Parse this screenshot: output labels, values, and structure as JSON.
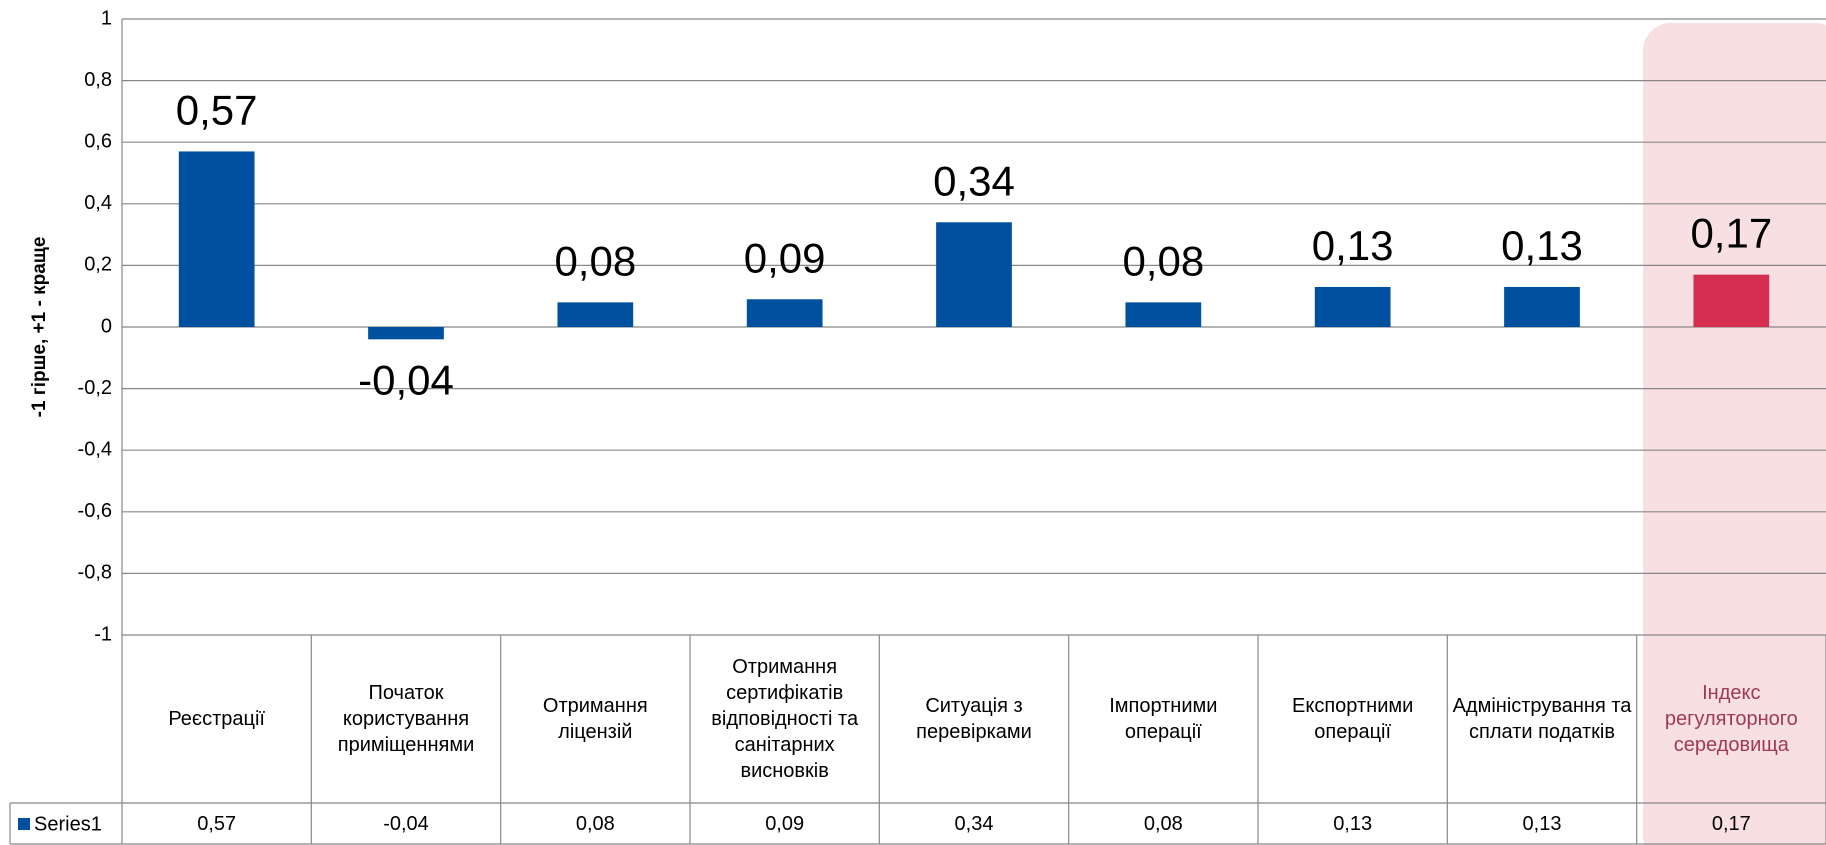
{
  "chart_data": {
    "type": "bar",
    "y_label": "-1 гірше, +1 - краще",
    "categories": [
      "Реєстрації",
      "Початок користування приміщеннями",
      "Отримання ліцензій",
      "Отримання сертифікатів відповідності та санітарних висновків",
      "Ситуація з перевірками",
      "Імпортними операції",
      "Експортними операції",
      "Адміністрування та сплати податків",
      "Індекс регуляторного середовища"
    ],
    "series": [
      {
        "name": "Series1",
        "color": "#0050a0",
        "colors": [
          "#0050a0",
          "#0050a0",
          "#0050a0",
          "#0050a0",
          "#0050a0",
          "#0050a0",
          "#0050a0",
          "#0050a0",
          "#d62e50"
        ],
        "values": [
          0.57,
          -0.04,
          0.08,
          0.09,
          0.34,
          0.08,
          0.13,
          0.13,
          0.17
        ],
        "value_labels": [
          "0,57",
          "-0,04",
          "0,08",
          "0,09",
          "0,34",
          "0,08",
          "0,13",
          "0,13",
          "0,17"
        ]
      }
    ],
    "ylim": [
      -1,
      1
    ],
    "yticks": [
      1,
      {
        "value": 0.8,
        "label": "0,8"
      },
      {
        "value": 0.6,
        "label": "0,6"
      },
      {
        "value": 0.4,
        "label": "0,4"
      },
      {
        "value": 0.2,
        "label": "0,2"
      },
      0,
      {
        "value": -0.2,
        "label": "-0,2"
      },
      {
        "value": -0.4,
        "label": "-0,4"
      },
      {
        "value": -0.6,
        "label": "-0,6"
      },
      {
        "value": -0.8,
        "label": "-0,8"
      },
      -1
    ],
    "grid": true
  }
}
